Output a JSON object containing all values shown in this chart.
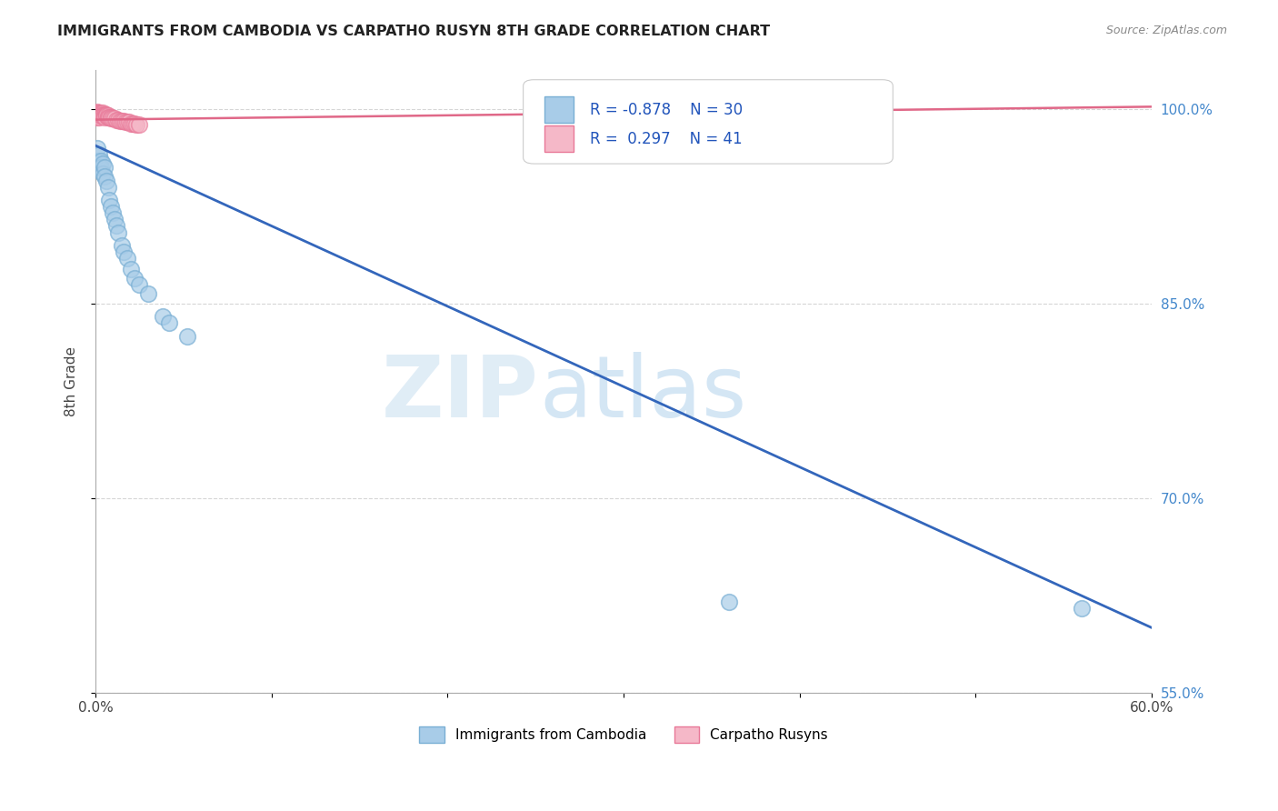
{
  "title": "IMMIGRANTS FROM CAMBODIA VS CARPATHO RUSYN 8TH GRADE CORRELATION CHART",
  "source": "Source: ZipAtlas.com",
  "ylabel": "8th Grade",
  "legend_blue_R": "-0.878",
  "legend_blue_N": "30",
  "legend_pink_R": "0.297",
  "legend_pink_N": "41",
  "legend_label_blue": "Immigrants from Cambodia",
  "legend_label_pink": "Carpatho Rusyns",
  "blue_scatter_x": [
    0.001,
    0.001,
    0.002,
    0.002,
    0.003,
    0.003,
    0.004,
    0.004,
    0.005,
    0.005,
    0.006,
    0.007,
    0.008,
    0.009,
    0.01,
    0.011,
    0.012,
    0.013,
    0.015,
    0.016,
    0.018,
    0.02,
    0.022,
    0.025,
    0.03,
    0.038,
    0.042,
    0.052,
    0.36,
    0.56
  ],
  "blue_scatter_y": [
    0.97,
    0.96,
    0.965,
    0.955,
    0.96,
    0.955,
    0.958,
    0.95,
    0.955,
    0.948,
    0.945,
    0.94,
    0.93,
    0.925,
    0.92,
    0.915,
    0.91,
    0.905,
    0.895,
    0.89,
    0.885,
    0.877,
    0.87,
    0.865,
    0.858,
    0.84,
    0.835,
    0.825,
    0.62,
    0.615
  ],
  "pink_scatter_x": [
    0.001,
    0.001,
    0.001,
    0.001,
    0.001,
    0.002,
    0.002,
    0.002,
    0.002,
    0.003,
    0.003,
    0.003,
    0.004,
    0.004,
    0.004,
    0.005,
    0.005,
    0.005,
    0.006,
    0.006,
    0.007,
    0.007,
    0.008,
    0.009,
    0.009,
    0.01,
    0.011,
    0.012,
    0.013,
    0.014,
    0.015,
    0.016,
    0.017,
    0.018,
    0.019,
    0.02,
    0.021,
    0.022,
    0.023,
    0.025,
    0.33
  ],
  "pink_scatter_y": [
    0.998,
    0.997,
    0.996,
    0.995,
    0.994,
    0.997,
    0.996,
    0.995,
    0.994,
    0.997,
    0.996,
    0.995,
    0.997,
    0.996,
    0.995,
    0.996,
    0.995,
    0.994,
    0.996,
    0.995,
    0.995,
    0.994,
    0.994,
    0.994,
    0.993,
    0.993,
    0.993,
    0.992,
    0.992,
    0.991,
    0.991,
    0.991,
    0.99,
    0.99,
    0.99,
    0.989,
    0.989,
    0.989,
    0.988,
    0.988,
    0.992
  ],
  "blue_line_x": [
    0.0,
    0.6
  ],
  "blue_line_y": [
    0.972,
    0.6
  ],
  "pink_line_x": [
    0.0,
    0.6
  ],
  "pink_line_y": [
    0.992,
    1.002
  ],
  "blue_color": "#a8cce8",
  "blue_edge_color": "#7aafd4",
  "blue_line_color": "#3366bb",
  "pink_color": "#f5b8c8",
  "pink_edge_color": "#e87898",
  "pink_line_color": "#e06888",
  "background_color": "#ffffff",
  "grid_color": "#bbbbbb",
  "watermark_zip": "ZIP",
  "watermark_atlas": "atlas",
  "xlim": [
    0.0,
    0.6
  ],
  "ylim": [
    0.58,
    1.03
  ],
  "y_tick_positions": [
    1.0,
    0.85,
    0.7,
    0.55
  ],
  "y_tick_labels": [
    "100.0%",
    "85.0%",
    "70.0%",
    "55.0%"
  ],
  "x_tick_positions": [
    0.0,
    0.1,
    0.2,
    0.3,
    0.4,
    0.5,
    0.6
  ],
  "x_tick_labels_show": [
    "0.0%",
    "",
    "",
    "",
    "",
    "",
    "60.0%"
  ]
}
